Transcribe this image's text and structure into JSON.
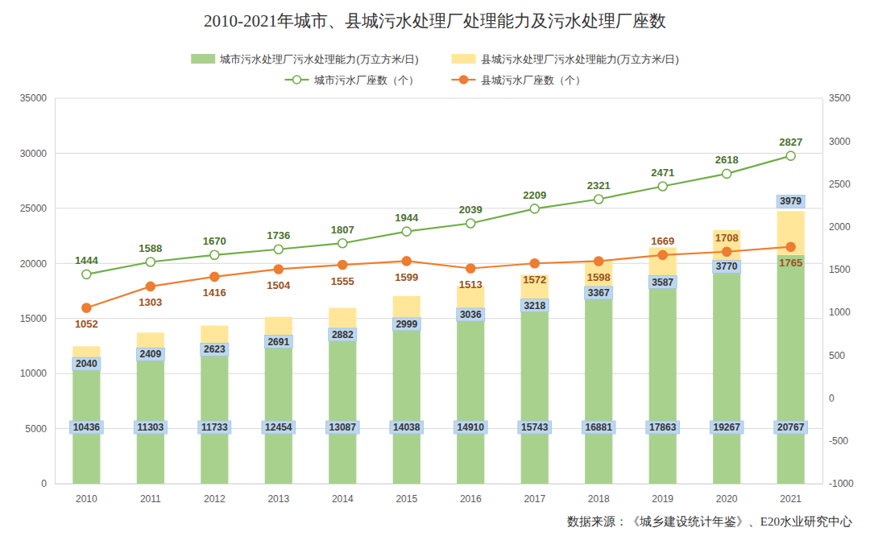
{
  "chart_data": {
    "type": "bar",
    "title": "2010-2021年城市、县城污水处理厂处理能力及污水处理厂座数",
    "source": "数据来源：《城乡建设统计年鉴》、E20水业研究中心",
    "categories": [
      "2010",
      "2011",
      "2012",
      "2013",
      "2014",
      "2015",
      "2016",
      "2017",
      "2018",
      "2019",
      "2020",
      "2021"
    ],
    "stacked": true,
    "data_labels": true,
    "grid": true,
    "legend": "top",
    "ylim": [
      0,
      35000
    ],
    "yticks": [
      0,
      5000,
      10000,
      15000,
      20000,
      25000,
      30000,
      35000
    ],
    "y2lim": [
      -1000,
      3500
    ],
    "y2ticks": [
      -1000,
      -500,
      0,
      500,
      1000,
      1500,
      2000,
      2500,
      3000,
      3500
    ],
    "series": [
      {
        "name": "城市污水处理厂污水处理能力(万立方米/日)",
        "type": "bar",
        "color": "#a9d18e",
        "values": [
          10436,
          11303,
          11733,
          12454,
          13087,
          14038,
          14910,
          15743,
          16881,
          17863,
          19267,
          20767
        ]
      },
      {
        "name": "县城污水处理厂污水处理能力(万立方米/日)",
        "type": "bar",
        "color": "#ffe699",
        "values": [
          2040,
          2409,
          2623,
          2691,
          2882,
          2999,
          3036,
          3218,
          3367,
          3587,
          3770,
          3979
        ]
      },
      {
        "name": "城市污水厂座数（个）",
        "type": "line",
        "axis": "y2",
        "color": "#70ad47",
        "marker": "hollow-circle",
        "values": [
          1444,
          1588,
          1670,
          1736,
          1807,
          1944,
          2039,
          2209,
          2321,
          2471,
          2618,
          2827
        ]
      },
      {
        "name": "县城污水厂座数（个）",
        "type": "line",
        "axis": "y2",
        "color": "#ed7d31",
        "marker": "circle",
        "values": [
          1052,
          1303,
          1416,
          1504,
          1555,
          1599,
          1513,
          1572,
          1598,
          1669,
          1708,
          1765
        ]
      }
    ]
  }
}
